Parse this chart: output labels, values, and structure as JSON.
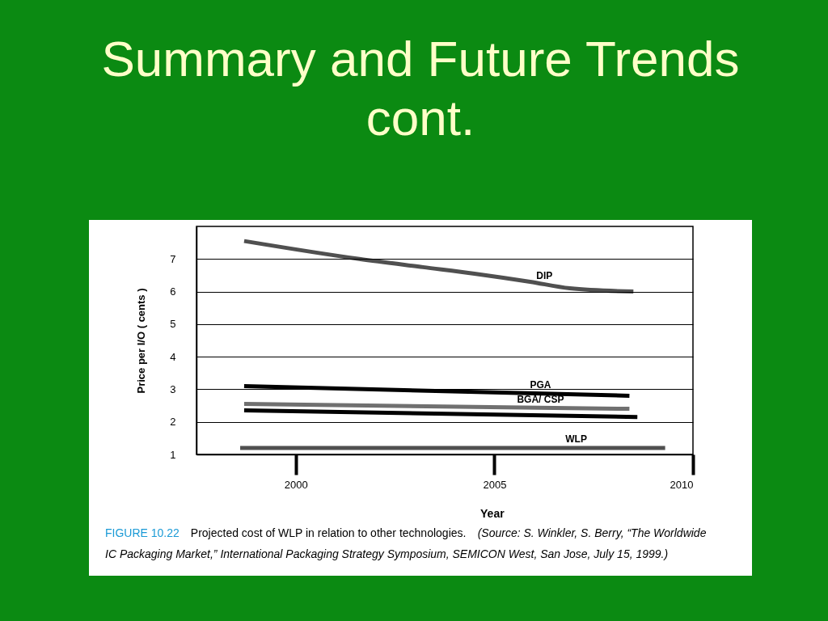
{
  "chart_data": {
    "type": "line",
    "title": "Summary and Future Trends cont.",
    "xlabel": "Year",
    "ylabel": "Price per I/O ( cents )",
    "annotations": [
      "FIGURE 10.22",
      "Projected cost of WLP in relation to other technologies.",
      "(Source: S. Winkler, S. Berry, “The Worldwide",
      "IC Packaging Market,” International Packaging Strategy Symposium, SEMICON West, San Jose, July 15, 1999.)"
    ],
    "series": [
      {
        "name": "DIP",
        "color": "#505050",
        "x": [
          1998.7,
          2001.6,
          2003.2,
          2004.5,
          2005.9,
          2006.9,
          2008.5
        ],
        "values": [
          7.55,
          7.0,
          6.75,
          6.55,
          6.3,
          6.1,
          6.0
        ]
      },
      {
        "name": "PGA",
        "color": "#000000",
        "x": [
          1998.7,
          2008.4
        ],
        "values": [
          3.1,
          2.8
        ]
      },
      {
        "name": "BGA/ CSP",
        "color": "#707070",
        "x": [
          1998.7,
          2008.4
        ],
        "values": [
          2.55,
          2.4
        ]
      },
      {
        "color": "#000000",
        "x": [
          1998.7,
          2008.6
        ],
        "values": [
          2.35,
          2.15
        ]
      },
      {
        "name": "WLP",
        "color": "#505050",
        "x": [
          1998.6,
          2009.3
        ],
        "values": [
          1.2,
          1.2
        ]
      }
    ],
    "xlim": [
      1997.5,
      2010
    ],
    "xticks": [
      2000,
      2005,
      2010
    ],
    "ylim": [
      1,
      8
    ],
    "yticks": [
      1,
      2,
      3,
      4,
      5,
      6,
      7
    ],
    "grid": "y",
    "line_style": "solid"
  }
}
